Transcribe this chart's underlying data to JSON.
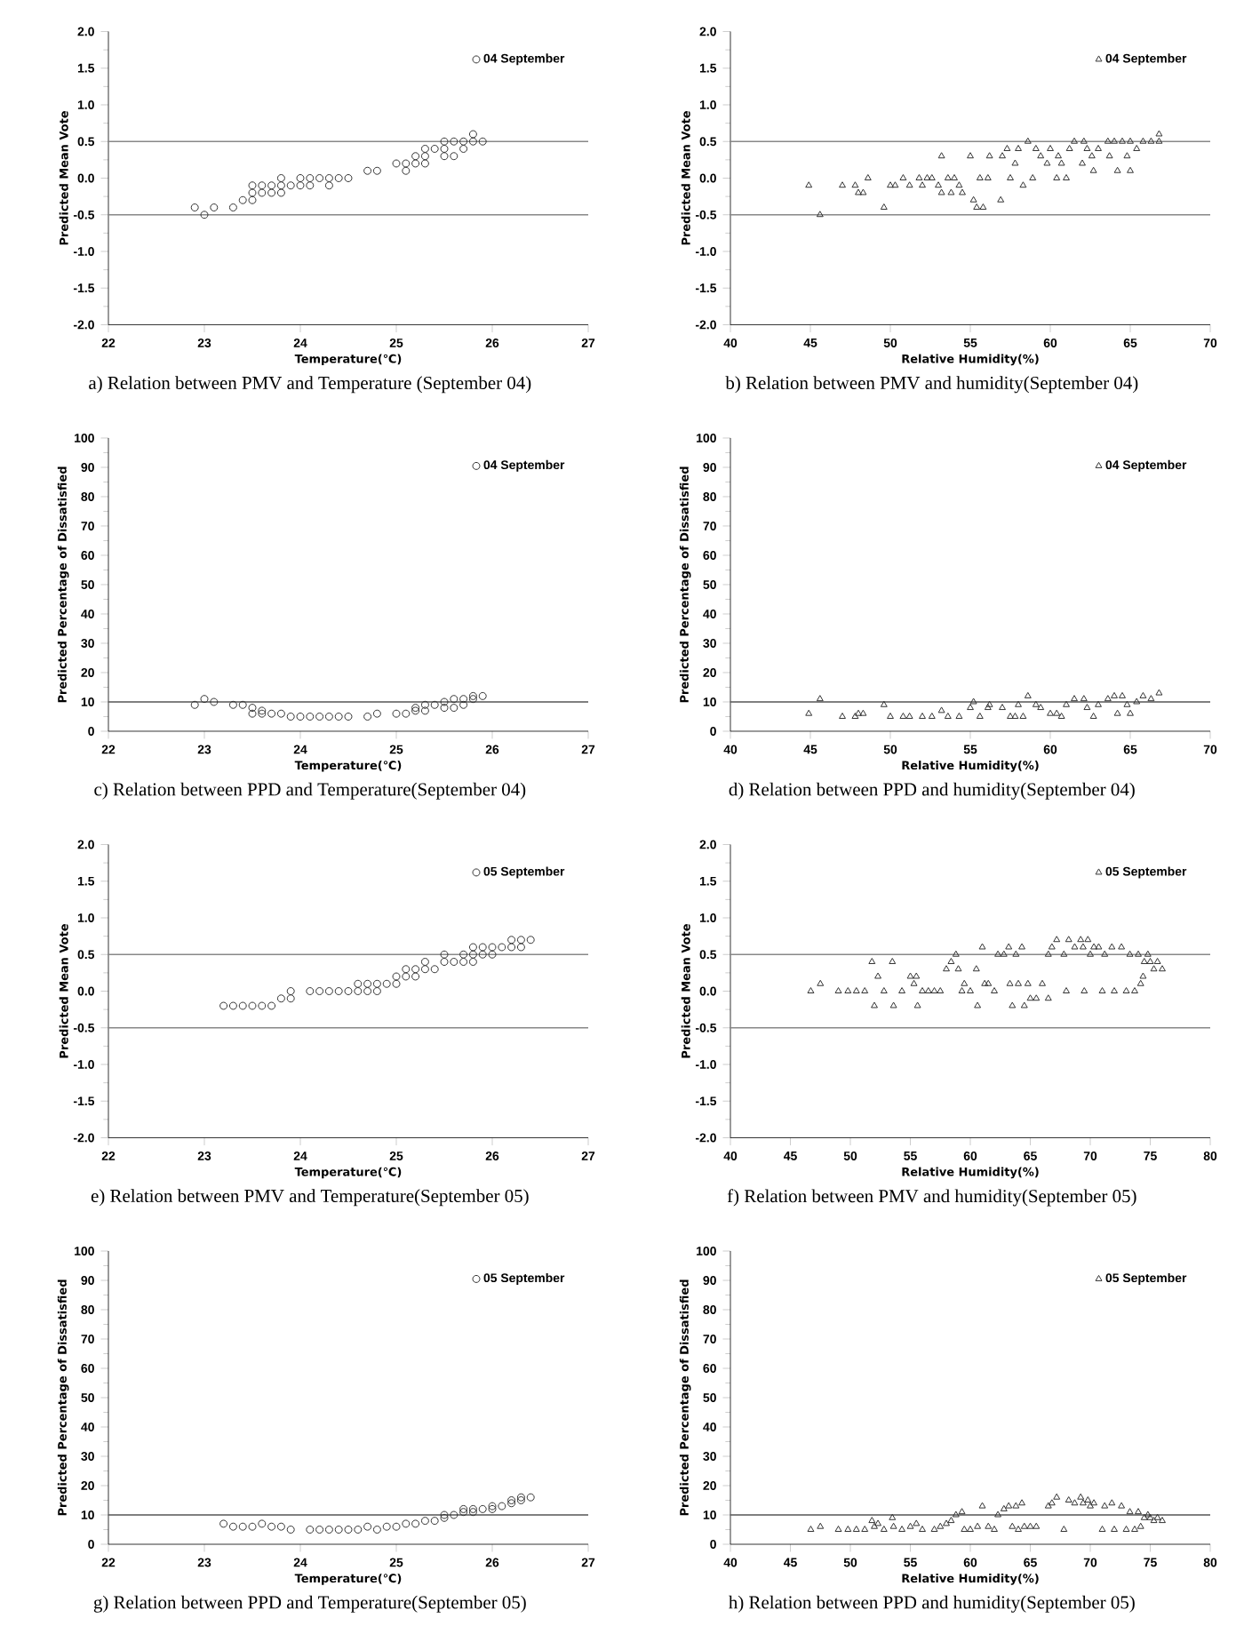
{
  "chart_data": [
    {
      "type": "scatter",
      "title": "a) Relation between PMV and Temperature (September 04)",
      "xlabel": "Temperature(℃)",
      "ylabel": "Predicted Mean Vote",
      "marker": "circle",
      "legend": "top right",
      "xlim": [
        22,
        27
      ],
      "xticks": [
        22,
        23,
        24,
        25,
        26,
        27
      ],
      "ylim": [
        -2,
        2
      ],
      "yticks": [
        {
          "value": -2,
          "label": "-2.0"
        },
        {
          "value": -1.5,
          "label": "-1.5"
        },
        {
          "value": -1,
          "label": "-1.0"
        },
        {
          "value": -0.5,
          "label": "-0.5"
        },
        {
          "value": 0,
          "label": "0.0"
        },
        {
          "value": 0.5,
          "label": "0.5"
        },
        {
          "value": 1,
          "label": "1.0"
        },
        {
          "value": 1.5,
          "label": "1.5"
        },
        {
          "value": 2,
          "label": "2.0"
        }
      ],
      "ref_lines": [
        {
          "axis": "y",
          "value": 0.5,
          "color": "#888888"
        },
        {
          "axis": "y",
          "value": -0.5,
          "color": "#888888"
        }
      ],
      "x": [
        22.9,
        23.0,
        23.1,
        23.3,
        23.4,
        23.5,
        23.5,
        23.5,
        23.6,
        23.6,
        23.7,
        23.7,
        23.8,
        23.8,
        23.8,
        23.9,
        24.0,
        24.0,
        24.1,
        24.1,
        24.2,
        24.3,
        24.3,
        24.4,
        24.5,
        24.7,
        24.8,
        25.0,
        25.1,
        25.1,
        25.2,
        25.2,
        25.3,
        25.3,
        25.3,
        25.4,
        25.5,
        25.5,
        25.5,
        25.6,
        25.6,
        25.7,
        25.7,
        25.8,
        25.8,
        25.9
      ],
      "series": [
        {
          "name": "04 September",
          "color": "#333333",
          "values": [
            -0.4,
            -0.5,
            -0.4,
            -0.4,
            -0.3,
            -0.3,
            -0.1,
            -0.2,
            -0.2,
            -0.1,
            -0.2,
            -0.1,
            -0.2,
            -0.1,
            0.0,
            -0.1,
            -0.1,
            0.0,
            0.0,
            -0.1,
            0.0,
            0.0,
            -0.1,
            0.0,
            0.0,
            0.1,
            0.1,
            0.2,
            0.1,
            0.2,
            0.2,
            0.3,
            0.2,
            0.3,
            0.4,
            0.4,
            0.3,
            0.4,
            0.5,
            0.3,
            0.5,
            0.4,
            0.5,
            0.5,
            0.6,
            0.5
          ]
        }
      ]
    },
    {
      "type": "scatter",
      "title": "b) Relation between PMV and humidity(September 04)",
      "xlabel": "Relative Humidity(%)",
      "ylabel": "Predicted Mean Vote",
      "marker": "triangle",
      "legend": "top right",
      "xlim": [
        40,
        70
      ],
      "xticks": [
        40,
        45,
        50,
        55,
        60,
        65,
        70
      ],
      "ylim": [
        -2,
        2
      ],
      "yticks": [
        {
          "value": -2,
          "label": "-2.0"
        },
        {
          "value": -1.5,
          "label": "-1.5"
        },
        {
          "value": -1,
          "label": "-1.0"
        },
        {
          "value": -0.5,
          "label": "-0.5"
        },
        {
          "value": 0,
          "label": "0.0"
        },
        {
          "value": 0.5,
          "label": "0.5"
        },
        {
          "value": 1,
          "label": "1.0"
        },
        {
          "value": 1.5,
          "label": "1.5"
        },
        {
          "value": 2,
          "label": "2.0"
        }
      ],
      "ref_lines": [
        {
          "axis": "y",
          "value": 0.5,
          "color": "#888888"
        },
        {
          "axis": "y",
          "value": -0.5,
          "color": "#888888"
        }
      ],
      "x": [
        44.9,
        45.6,
        47.0,
        47.8,
        48.0,
        48.3,
        48.6,
        49.6,
        50.0,
        50.3,
        50.8,
        51.2,
        51.8,
        52.0,
        52.3,
        52.6,
        53.0,
        53.2,
        53.2,
        53.6,
        53.8,
        54.0,
        54.3,
        54.5,
        55.0,
        55.2,
        55.4,
        55.6,
        55.8,
        56.1,
        56.2,
        56.9,
        57.0,
        57.3,
        57.5,
        57.8,
        58.0,
        58.3,
        58.6,
        58.9,
        59.1,
        59.4,
        59.8,
        60.0,
        60.4,
        60.5,
        60.7,
        61.0,
        61.2,
        61.5,
        62.0,
        62.1,
        62.3,
        62.6,
        62.7,
        63.0,
        63.6,
        63.7,
        64.0,
        64.2,
        64.5,
        64.8,
        65.0,
        65.0,
        65.4,
        65.8,
        66.3,
        66.8,
        66.8
      ],
      "series": [
        {
          "name": "04 September",
          "color": "#333333",
          "values": [
            -0.1,
            -0.5,
            -0.1,
            -0.1,
            -0.2,
            -0.2,
            0.0,
            -0.4,
            -0.1,
            -0.1,
            0.0,
            -0.1,
            0.0,
            -0.1,
            0.0,
            0.0,
            -0.1,
            0.3,
            -0.2,
            0.0,
            -0.2,
            0.0,
            -0.1,
            -0.2,
            0.3,
            -0.3,
            -0.4,
            0.0,
            -0.4,
            0.0,
            0.3,
            -0.3,
            0.3,
            0.4,
            0.0,
            0.2,
            0.4,
            -0.1,
            0.5,
            0.0,
            0.4,
            0.3,
            0.2,
            0.4,
            0.0,
            0.3,
            0.2,
            0.0,
            0.4,
            0.5,
            0.2,
            0.5,
            0.4,
            0.3,
            0.1,
            0.4,
            0.5,
            0.3,
            0.5,
            0.1,
            0.5,
            0.3,
            0.1,
            0.5,
            0.4,
            0.5,
            0.5,
            0.6,
            0.5
          ]
        }
      ]
    },
    {
      "type": "scatter",
      "title": "c) Relation between PPD and Temperature(September 04)",
      "xlabel": "Temperature(℃)",
      "ylabel": "Predicted Percentage of Dissatisfied",
      "marker": "circle",
      "legend": "top right",
      "xlim": [
        22,
        27
      ],
      "xticks": [
        22,
        23,
        24,
        25,
        26,
        27
      ],
      "ylim": [
        0,
        100
      ],
      "yticks": [
        0,
        10,
        20,
        30,
        40,
        50,
        60,
        70,
        80,
        90,
        100
      ],
      "ref_lines": [
        {
          "axis": "y",
          "value": 10,
          "color": "#555555"
        }
      ],
      "x": [
        22.9,
        23.0,
        23.1,
        23.3,
        23.4,
        23.5,
        23.5,
        23.6,
        23.6,
        23.7,
        23.8,
        23.9,
        24.0,
        24.1,
        24.2,
        24.3,
        24.4,
        24.5,
        24.7,
        24.8,
        25.0,
        25.1,
        25.2,
        25.2,
        25.3,
        25.3,
        25.4,
        25.5,
        25.5,
        25.6,
        25.6,
        25.7,
        25.7,
        25.8,
        25.8,
        25.9
      ],
      "series": [
        {
          "name": "04 September",
          "color": "#333333",
          "values": [
            9,
            11,
            10,
            9,
            9,
            8,
            6,
            6,
            7,
            6,
            6,
            5,
            5,
            5,
            5,
            5,
            5,
            5,
            5,
            6,
            6,
            6,
            7,
            8,
            7,
            9,
            9,
            8,
            10,
            8,
            11,
            9,
            11,
            11,
            12,
            12
          ]
        }
      ]
    },
    {
      "type": "scatter",
      "title": "d) Relation between PPD and humidity(September 04)",
      "xlabel": "Relative Humidity(%)",
      "ylabel": "Predicted Percentage of Dissatisfied",
      "marker": "triangle",
      "legend": "top right",
      "xlim": [
        40,
        70
      ],
      "xticks": [
        40,
        45,
        50,
        55,
        60,
        65,
        70
      ],
      "ylim": [
        0,
        100
      ],
      "yticks": [
        0,
        10,
        20,
        30,
        40,
        50,
        60,
        70,
        80,
        90,
        100
      ],
      "ref_lines": [
        {
          "axis": "y",
          "value": 10,
          "color": "#555555"
        }
      ],
      "x": [
        44.9,
        45.6,
        47.0,
        47.8,
        48.0,
        48.3,
        49.6,
        50.0,
        50.8,
        51.2,
        52.0,
        52.6,
        53.2,
        53.6,
        54.3,
        55.0,
        55.2,
        55.6,
        56.1,
        56.2,
        57.0,
        57.5,
        57.8,
        58.0,
        58.3,
        58.6,
        59.1,
        59.4,
        60.0,
        60.4,
        60.7,
        61.0,
        61.5,
        62.1,
        62.3,
        62.7,
        63.0,
        63.6,
        64.0,
        64.2,
        64.5,
        64.8,
        65.0,
        65.4,
        65.8,
        66.3,
        66.8
      ],
      "series": [
        {
          "name": "04 September",
          "color": "#333333",
          "values": [
            6,
            11,
            5,
            5,
            6,
            6,
            9,
            5,
            5,
            5,
            5,
            5,
            7,
            5,
            5,
            8,
            10,
            5,
            8,
            9,
            8,
            5,
            5,
            9,
            5,
            12,
            9,
            8,
            6,
            6,
            5,
            9,
            11,
            11,
            8,
            5,
            9,
            11,
            12,
            6,
            12,
            9,
            6,
            10,
            12,
            11,
            13
          ]
        }
      ]
    },
    {
      "type": "scatter",
      "title": "e) Relation between PMV and Temperature(September 05)",
      "xlabel": "Temperature(℃)",
      "ylabel": "Predicted Mean Vote",
      "marker": "circle",
      "legend": "top right",
      "xlim": [
        22,
        27
      ],
      "xticks": [
        22,
        23,
        24,
        25,
        26,
        27
      ],
      "ylim": [
        -2,
        2
      ],
      "yticks": [
        {
          "value": -2,
          "label": "-2.0"
        },
        {
          "value": -1.5,
          "label": "-1.5"
        },
        {
          "value": -1,
          "label": "-1.0"
        },
        {
          "value": -0.5,
          "label": "-0.5"
        },
        {
          "value": 0,
          "label": "0.0"
        },
        {
          "value": 0.5,
          "label": "0.5"
        },
        {
          "value": 1,
          "label": "1.0"
        },
        {
          "value": 1.5,
          "label": "1.5"
        },
        {
          "value": 2,
          "label": "2.0"
        }
      ],
      "ref_lines": [
        {
          "axis": "y",
          "value": 0.5,
          "color": "#888888"
        },
        {
          "axis": "y",
          "value": -0.5,
          "color": "#888888"
        }
      ],
      "x": [
        23.2,
        23.3,
        23.4,
        23.5,
        23.6,
        23.7,
        23.8,
        23.9,
        23.9,
        24.1,
        24.2,
        24.3,
        24.4,
        24.5,
        24.6,
        24.6,
        24.7,
        24.7,
        24.8,
        24.8,
        24.9,
        25.0,
        25.0,
        25.1,
        25.1,
        25.2,
        25.2,
        25.3,
        25.3,
        25.4,
        25.5,
        25.5,
        25.6,
        25.7,
        25.7,
        25.8,
        25.8,
        25.8,
        25.9,
        25.9,
        26.0,
        26.0,
        26.1,
        26.2,
        26.2,
        26.3,
        26.3,
        26.4
      ],
      "series": [
        {
          "name": "05 September",
          "color": "#333333",
          "values": [
            -0.2,
            -0.2,
            -0.2,
            -0.2,
            -0.2,
            -0.2,
            -0.1,
            -0.1,
            0.0,
            0.0,
            0.0,
            0.0,
            0.0,
            0.0,
            0.0,
            0.1,
            0.0,
            0.1,
            0.0,
            0.1,
            0.1,
            0.1,
            0.2,
            0.2,
            0.3,
            0.2,
            0.3,
            0.3,
            0.4,
            0.3,
            0.4,
            0.5,
            0.4,
            0.4,
            0.5,
            0.4,
            0.5,
            0.6,
            0.5,
            0.6,
            0.5,
            0.6,
            0.6,
            0.6,
            0.7,
            0.6,
            0.7,
            0.7
          ]
        }
      ]
    },
    {
      "type": "scatter",
      "title": "f) Relation between PMV and humidity(September 05)",
      "xlabel": "Relative Humidity(%)",
      "ylabel": "Predicted Mean Vote",
      "marker": "triangle",
      "legend": "top right",
      "xlim": [
        40,
        80
      ],
      "xticks": [
        40,
        45,
        50,
        55,
        60,
        65,
        70,
        75,
        80
      ],
      "ylim": [
        -2,
        2
      ],
      "yticks": [
        {
          "value": -2,
          "label": "-2.0"
        },
        {
          "value": -1.5,
          "label": "-1.5"
        },
        {
          "value": -1,
          "label": "-1.0"
        },
        {
          "value": -0.5,
          "label": "-0.5"
        },
        {
          "value": 0,
          "label": "0.0"
        },
        {
          "value": 0.5,
          "label": "0.5"
        },
        {
          "value": 1,
          "label": "1.0"
        },
        {
          "value": 1.5,
          "label": "1.5"
        },
        {
          "value": 2,
          "label": "2.0"
        }
      ],
      "ref_lines": [
        {
          "axis": "y",
          "value": 0.5,
          "color": "#888888"
        },
        {
          "axis": "y",
          "value": -0.5,
          "color": "#888888"
        }
      ],
      "x": [
        46.7,
        47.5,
        49.0,
        49.8,
        50.5,
        51.2,
        51.8,
        52.0,
        52.3,
        52.8,
        53.5,
        53.6,
        54.3,
        55.0,
        55.3,
        55.5,
        55.6,
        56.0,
        56.5,
        57.0,
        57.5,
        58.0,
        58.4,
        58.8,
        59.0,
        59.3,
        59.5,
        60.0,
        60.5,
        60.6,
        61.0,
        61.2,
        61.5,
        62.0,
        62.3,
        62.8,
        63.2,
        63.3,
        63.5,
        63.8,
        64.0,
        64.3,
        64.5,
        64.8,
        65.0,
        65.5,
        66.0,
        66.5,
        66.5,
        66.8,
        67.2,
        67.8,
        68.0,
        68.2,
        68.7,
        69.2,
        69.4,
        69.5,
        69.8,
        70.0,
        70.3,
        70.7,
        71.0,
        71.2,
        71.8,
        72.0,
        72.6,
        73.0,
        73.3,
        73.7,
        74.0,
        74.2,
        74.4,
        74.5,
        74.8,
        75.0,
        75.3,
        75.6,
        76.0
      ],
      "series": [
        {
          "name": "05 September",
          "color": "#333333",
          "values": [
            0.0,
            0.1,
            0.0,
            0.0,
            0.0,
            0.0,
            0.4,
            -0.2,
            0.2,
            0.0,
            0.4,
            -0.2,
            0.0,
            0.2,
            0.1,
            0.2,
            -0.2,
            0.0,
            0.0,
            0.0,
            0.0,
            0.3,
            0.4,
            0.5,
            0.3,
            0.0,
            0.1,
            0.0,
            0.3,
            -0.2,
            0.6,
            0.1,
            0.1,
            0.0,
            0.5,
            0.5,
            0.6,
            0.1,
            -0.2,
            0.5,
            0.1,
            0.6,
            -0.2,
            0.1,
            -0.1,
            -0.1,
            0.1,
            -0.1,
            0.5,
            0.6,
            0.7,
            0.5,
            0.0,
            0.7,
            0.6,
            0.7,
            0.6,
            0.0,
            0.7,
            0.5,
            0.6,
            0.6,
            0.0,
            0.5,
            0.6,
            0.0,
            0.6,
            0.0,
            0.5,
            0.0,
            0.5,
            0.1,
            0.2,
            0.4,
            0.5,
            0.4,
            0.3,
            0.4,
            0.3
          ]
        }
      ]
    },
    {
      "type": "scatter",
      "title": "g) Relation between PPD and Temperature(September 05)",
      "xlabel": "Temperature(℃)",
      "ylabel": "Predicted Percentage of Dissatisfied",
      "marker": "circle",
      "legend": "top right",
      "xlim": [
        22,
        27
      ],
      "xticks": [
        22,
        23,
        24,
        25,
        26,
        27
      ],
      "ylim": [
        0,
        100
      ],
      "yticks": [
        0,
        10,
        20,
        30,
        40,
        50,
        60,
        70,
        80,
        90,
        100
      ],
      "ref_lines": [
        {
          "axis": "y",
          "value": 10,
          "color": "#555555"
        }
      ],
      "x": [
        23.2,
        23.3,
        23.4,
        23.5,
        23.6,
        23.7,
        23.8,
        23.9,
        24.1,
        24.2,
        24.3,
        24.4,
        24.5,
        24.6,
        24.7,
        24.8,
        24.9,
        25.0,
        25.1,
        25.2,
        25.3,
        25.4,
        25.5,
        25.5,
        25.6,
        25.7,
        25.7,
        25.8,
        25.8,
        25.9,
        26.0,
        26.0,
        26.1,
        26.2,
        26.2,
        26.3,
        26.3,
        26.4
      ],
      "series": [
        {
          "name": "05 September",
          "color": "#333333",
          "values": [
            7,
            6,
            6,
            6,
            7,
            6,
            6,
            5,
            5,
            5,
            5,
            5,
            5,
            5,
            6,
            5,
            6,
            6,
            7,
            7,
            8,
            8,
            9,
            10,
            10,
            11,
            12,
            11,
            12,
            12,
            12,
            13,
            13,
            14,
            15,
            15,
            16,
            16
          ]
        }
      ]
    },
    {
      "type": "scatter",
      "title": "h) Relation between PPD and humidity(September 05)",
      "xlabel": "Relative Humidity(%)",
      "ylabel": "Predicted Percentage of Dissatisfied",
      "marker": "triangle",
      "legend": "top right",
      "xlim": [
        40,
        80
      ],
      "xticks": [
        40,
        45,
        50,
        55,
        60,
        65,
        70,
        75,
        80
      ],
      "ylim": [
        0,
        100
      ],
      "yticks": [
        0,
        10,
        20,
        30,
        40,
        50,
        60,
        70,
        80,
        90,
        100
      ],
      "ref_lines": [
        {
          "axis": "y",
          "value": 10,
          "color": "#555555"
        }
      ],
      "x": [
        46.7,
        47.5,
        49.0,
        49.8,
        50.5,
        51.2,
        51.8,
        52.0,
        52.3,
        52.8,
        53.5,
        53.6,
        54.3,
        55.0,
        55.5,
        56.0,
        57.0,
        57.5,
        58.0,
        58.4,
        58.8,
        59.3,
        59.5,
        60.0,
        60.6,
        61.0,
        61.5,
        62.0,
        62.3,
        62.8,
        63.2,
        63.5,
        63.8,
        64.0,
        64.3,
        64.5,
        65.0,
        65.5,
        66.5,
        66.8,
        67.2,
        67.8,
        68.2,
        68.7,
        69.2,
        69.4,
        69.8,
        70.0,
        70.3,
        71.0,
        71.2,
        71.8,
        72.0,
        72.6,
        73.0,
        73.3,
        73.7,
        74.0,
        74.2,
        74.5,
        74.8,
        75.0,
        75.3,
        75.6,
        76.0
      ],
      "series": [
        {
          "name": "05 September",
          "color": "#333333",
          "values": [
            5,
            6,
            5,
            5,
            5,
            5,
            8,
            6,
            7,
            5,
            9,
            6,
            5,
            6,
            7,
            5,
            5,
            6,
            7,
            8,
            10,
            11,
            5,
            5,
            6,
            13,
            6,
            5,
            10,
            12,
            13,
            6,
            13,
            5,
            14,
            6,
            6,
            6,
            13,
            14,
            16,
            5,
            15,
            14,
            16,
            14,
            15,
            13,
            14,
            5,
            13,
            14,
            5,
            13,
            5,
            11,
            5,
            11,
            6,
            9,
            10,
            9,
            8,
            9,
            8
          ]
        }
      ]
    }
  ]
}
